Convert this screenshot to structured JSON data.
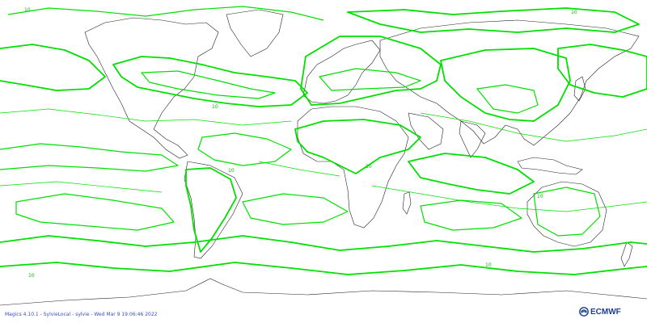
{
  "map": {
    "projection": "cylindrical",
    "field": "contours",
    "contour_color": "#00e000",
    "coastline_color": "#000000",
    "contour_labels": [
      "10",
      "10",
      "10",
      "10",
      "10",
      "10",
      "10",
      "10"
    ]
  },
  "footer": {
    "credit": "Magics 4.10.1 - SylvieLocal - sylvie - Wed Mar  9 19:06:46 2022",
    "logo": "ECMWF",
    "logo_icon": "ecmwf-swirl-icon",
    "logo_color": "#1c3f8f",
    "credit_color": "#3c4fbf"
  }
}
